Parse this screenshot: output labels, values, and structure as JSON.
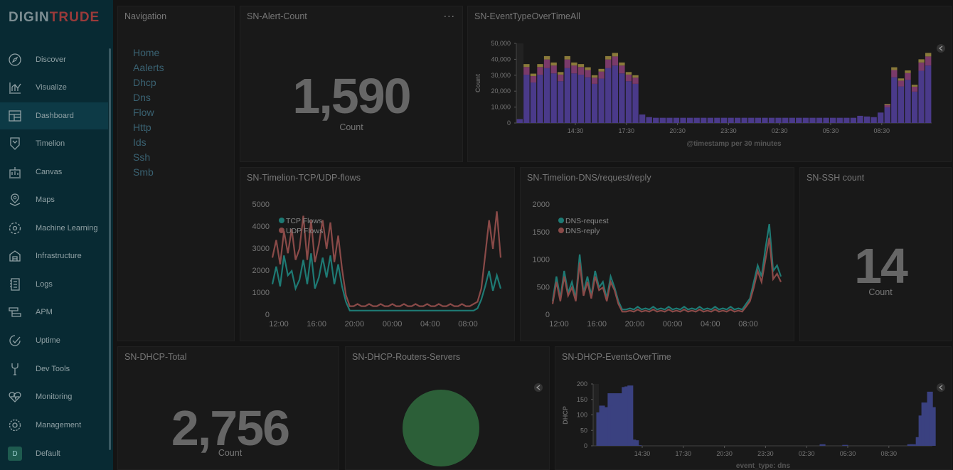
{
  "brand": {
    "part1": "DIGIN",
    "part2": "TRUDE"
  },
  "sidebar": {
    "items": [
      {
        "label": "Discover",
        "icon": "compass-icon"
      },
      {
        "label": "Visualize",
        "icon": "chart-icon"
      },
      {
        "label": "Dashboard",
        "icon": "dashboard-icon",
        "active": true
      },
      {
        "label": "Timelion",
        "icon": "timelion-icon"
      },
      {
        "label": "Canvas",
        "icon": "canvas-icon"
      },
      {
        "label": "Maps",
        "icon": "maps-icon"
      },
      {
        "label": "Machine Learning",
        "icon": "ml-icon"
      },
      {
        "label": "Infrastructure",
        "icon": "infrastructure-icon"
      },
      {
        "label": "Logs",
        "icon": "logs-icon"
      },
      {
        "label": "APM",
        "icon": "apm-icon"
      },
      {
        "label": "Uptime",
        "icon": "uptime-icon"
      },
      {
        "label": "Dev Tools",
        "icon": "wrench-icon"
      },
      {
        "label": "Monitoring",
        "icon": "heartbeat-icon"
      },
      {
        "label": "Management",
        "icon": "gear-icon"
      }
    ],
    "space": {
      "badge": "D",
      "label": "Default"
    }
  },
  "panels": {
    "navigation": {
      "title": "Navigation",
      "links": [
        "Home",
        "Aalerts",
        "Dhcp",
        "Dns",
        "Flow",
        "Http",
        "Ids",
        "Ssh",
        "Smb"
      ]
    },
    "alert_count": {
      "title": "SN-Alert-Count",
      "value": "1,590",
      "label": "Count",
      "menu": "..."
    },
    "event_type": {
      "title": "SN-EventTypeOverTimeAll"
    },
    "tcp_udp": {
      "title": "SN-Timelion-TCP/UDP-flows"
    },
    "dns": {
      "title": "SN-Timelion-DNS/request/reply"
    },
    "ssh": {
      "title": "SN-SSH count",
      "value": "14",
      "label": "Count"
    },
    "dhcp_total": {
      "title": "SN-DHCP-Total",
      "value": "2,756",
      "label": "Count"
    },
    "dhcp_routers": {
      "title": "SN-DHCP-Routers-Servers"
    },
    "dhcp_events": {
      "title": "SN-DHCP-EventsOverTime"
    }
  },
  "chart_data": [
    {
      "id": "event_type",
      "type": "bar",
      "stacked": true,
      "ylabel": "Count",
      "xlabel": "@timestamp per 30 minutes",
      "ylim": [
        0,
        50000
      ],
      "yticks": [
        "0",
        "10,000",
        "20,000",
        "30,000",
        "40,000",
        "50,000"
      ],
      "xticks": [
        "14:30",
        "17:30",
        "20:30",
        "23:30",
        "02:30",
        "05:30",
        "08:30"
      ],
      "values": [
        3000,
        37000,
        31000,
        37000,
        42000,
        38000,
        32000,
        42000,
        38000,
        37000,
        35000,
        30000,
        34000,
        42000,
        44000,
        38000,
        32000,
        30000,
        6500,
        4500,
        4000,
        4000,
        4000,
        4000,
        4000,
        4000,
        4000,
        4000,
        4000,
        4000,
        4000,
        4000,
        4000,
        4000,
        4000,
        4000,
        4000,
        4000,
        4000,
        4000,
        4000,
        4000,
        4000,
        4000,
        4000,
        4000,
        4000,
        4000,
        4000,
        4000,
        5500,
        5000,
        4500,
        8000,
        12000,
        35000,
        28000,
        33000,
        24000,
        40000,
        44000
      ],
      "series_colors": [
        "#4a3a8a",
        "#7a3a6a",
        "#8a7a3a"
      ]
    },
    {
      "id": "tcp_udp",
      "type": "line",
      "ylim": [
        0,
        5000
      ],
      "yticks": [
        "0",
        "1000",
        "2000",
        "3000",
        "4000",
        "5000"
      ],
      "xticks": [
        "12:00",
        "16:00",
        "20:00",
        "00:00",
        "04:00",
        "08:00"
      ],
      "series": [
        {
          "name": "TCP Flows",
          "color": "#1e7a74",
          "values": [
            1400,
            2200,
            1300,
            2700,
            1800,
            2000,
            1200,
            1600,
            2500,
            1400,
            2800,
            1200,
            1700,
            2600,
            1700,
            2700,
            1400,
            2300,
            1300,
            600,
            200,
            200,
            200,
            200,
            200,
            200,
            200,
            200,
            200,
            200,
            200,
            200,
            200,
            200,
            200,
            200,
            200,
            200,
            200,
            200,
            200,
            200,
            200,
            200,
            200,
            200,
            200,
            200,
            200,
            200,
            200,
            200,
            200,
            300,
            700,
            1300,
            2000,
            1100,
            1800,
            1200
          ]
        },
        {
          "name": "UDP Flows",
          "color": "#8a4a48",
          "values": [
            2600,
            3400,
            2300,
            3800,
            2800,
            3900,
            2500,
            3000,
            4500,
            2500,
            4300,
            2400,
            3200,
            4300,
            3000,
            4200,
            2400,
            3600,
            2100,
            900,
            400,
            400,
            500,
            400,
            400,
            500,
            400,
            400,
            500,
            400,
            400,
            500,
            400,
            400,
            500,
            400,
            400,
            500,
            400,
            400,
            500,
            400,
            400,
            500,
            400,
            400,
            500,
            400,
            400,
            500,
            400,
            400,
            500,
            600,
            1200,
            2700,
            4300,
            3000,
            4700,
            2600
          ]
        }
      ]
    },
    {
      "id": "dns",
      "type": "line",
      "ylim": [
        0,
        2000
      ],
      "yticks": [
        "0",
        "500",
        "1000",
        "1500",
        "2000"
      ],
      "xticks": [
        "12:00",
        "16:00",
        "20:00",
        "00:00",
        "04:00",
        "08:00"
      ],
      "series": [
        {
          "name": "DNS-request",
          "color": "#1e7a74",
          "values": [
            250,
            700,
            300,
            800,
            400,
            600,
            300,
            1100,
            400,
            700,
            350,
            800,
            500,
            600,
            300,
            700,
            500,
            250,
            100,
            100,
            120,
            100,
            150,
            100,
            120,
            100,
            150,
            100,
            120,
            100,
            150,
            100,
            120,
            100,
            150,
            100,
            120,
            100,
            150,
            100,
            120,
            100,
            150,
            100,
            120,
            100,
            150,
            100,
            120,
            100,
            200,
            300,
            600,
            900,
            700,
            1200,
            1650,
            800,
            900,
            700
          ]
        },
        {
          "name": "DNS-reply",
          "color": "#8a4a48",
          "values": [
            200,
            600,
            250,
            700,
            350,
            500,
            250,
            950,
            350,
            600,
            300,
            700,
            450,
            500,
            250,
            600,
            450,
            200,
            60,
            60,
            80,
            60,
            100,
            60,
            80,
            60,
            100,
            60,
            80,
            60,
            100,
            60,
            80,
            60,
            100,
            60,
            80,
            60,
            100,
            60,
            80,
            60,
            100,
            60,
            80,
            60,
            100,
            60,
            80,
            60,
            150,
            250,
            500,
            800,
            600,
            1000,
            1400,
            650,
            750,
            600
          ]
        }
      ]
    },
    {
      "id": "dhcp_events",
      "type": "bar",
      "ylabel": "DHCP",
      "xlabel": "event_type: dns",
      "ylim": [
        0,
        200
      ],
      "yticks": [
        "0",
        "50",
        "100",
        "150",
        "200"
      ],
      "xticks": [
        "14:30",
        "17:30",
        "20:30",
        "23:30",
        "02:30",
        "05:30",
        "08:30"
      ],
      "color": "#3a4180",
      "values": [
        0,
        108,
        130,
        122,
        125,
        170,
        130,
        170,
        142,
        170,
        190,
        192,
        195,
        20,
        18,
        2,
        0,
        0,
        0,
        0,
        0,
        0,
        0,
        0,
        0,
        0,
        0,
        0,
        0,
        0,
        0,
        0,
        0,
        0,
        0,
        0,
        0,
        0,
        0,
        0,
        0,
        0,
        0,
        0,
        0,
        0,
        0,
        0,
        0,
        0,
        0,
        0,
        0,
        0,
        0,
        0,
        0,
        0,
        0,
        0,
        0,
        0,
        0,
        0,
        0,
        0,
        0,
        0,
        0,
        0,
        0,
        0,
        0,
        0,
        0,
        0,
        0,
        0,
        0,
        0,
        5,
        0,
        0,
        0,
        0,
        0,
        0,
        0,
        3,
        0,
        0,
        0,
        0,
        0,
        0,
        0,
        0,
        0,
        0,
        0,
        0,
        0,
        0,
        0,
        0,
        0,
        0,
        0,
        0,
        0,
        0,
        5,
        5,
        0,
        28,
        98,
        140,
        115,
        175,
        125
      ]
    },
    {
      "id": "dhcp_routers",
      "type": "pie",
      "values": [
        1
      ],
      "color": "#2c5f38"
    }
  ]
}
